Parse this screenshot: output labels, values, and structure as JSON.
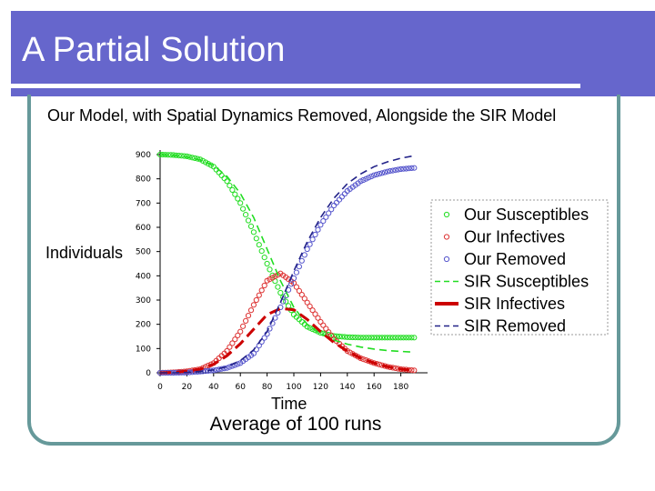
{
  "slide": {
    "title": "A Partial Solution",
    "caption": "Average of 100 runs",
    "colors": {
      "title_bar": "#6666cc",
      "frame": "#66999a"
    }
  },
  "chart_data": {
    "type": "line",
    "title": "Our Model, with Spatial Dynamics Removed, Alongside the SIR Model",
    "xlabel": "Time",
    "ylabel": "Individuals",
    "xlim": [
      0,
      200
    ],
    "ylim": [
      0,
      900
    ],
    "xticks": [
      "0",
      "20",
      "40",
      "60",
      "80",
      "100",
      "120",
      "140",
      "160",
      "180"
    ],
    "yticks": [
      "0",
      "100",
      "200",
      "300",
      "400",
      "500",
      "600",
      "700",
      "800",
      "900"
    ],
    "legend_position": "right",
    "grid": false,
    "x": [
      0,
      10,
      20,
      30,
      40,
      50,
      60,
      70,
      80,
      90,
      100,
      110,
      120,
      130,
      140,
      150,
      160,
      170,
      180,
      190
    ],
    "series": [
      {
        "name": "Our Susceptibles",
        "style": "circles",
        "color": "#22dd22",
        "values": [
          900,
          898,
          893,
          880,
          850,
          790,
          700,
          580,
          450,
          330,
          240,
          190,
          165,
          152,
          147,
          145,
          145,
          145,
          145,
          145
        ]
      },
      {
        "name": "Our Infectives",
        "style": "circles",
        "color": "#dd3333",
        "values": [
          0,
          2,
          6,
          15,
          40,
          90,
          170,
          280,
          380,
          410,
          370,
          290,
          210,
          140,
          90,
          60,
          40,
          25,
          15,
          10
        ]
      },
      {
        "name": "Our Removed",
        "style": "circles",
        "color": "#5555cc",
        "values": [
          0,
          0,
          1,
          5,
          10,
          20,
          40,
          80,
          160,
          270,
          390,
          510,
          610,
          690,
          750,
          790,
          815,
          830,
          840,
          845
        ]
      },
      {
        "name": "SIR Susceptibles",
        "style": "dashed",
        "color": "#22dd22",
        "values": [
          900,
          897,
          890,
          878,
          855,
          810,
          740,
          640,
          510,
          380,
          270,
          200,
          160,
          135,
          118,
          106,
          98,
          92,
          88,
          85
        ]
      },
      {
        "name": "SIR Infectives",
        "style": "thick-dashed",
        "color": "#cc0000",
        "values": [
          0,
          2,
          7,
          15,
          35,
          70,
          120,
          180,
          240,
          265,
          260,
          220,
          170,
          125,
          90,
          60,
          40,
          25,
          15,
          10
        ]
      },
      {
        "name": "SIR Removed",
        "style": "dashed",
        "color": "#222288",
        "values": [
          0,
          0,
          2,
          6,
          12,
          25,
          50,
          95,
          170,
          290,
          420,
          540,
          640,
          720,
          780,
          820,
          850,
          870,
          885,
          895
        ]
      }
    ]
  }
}
